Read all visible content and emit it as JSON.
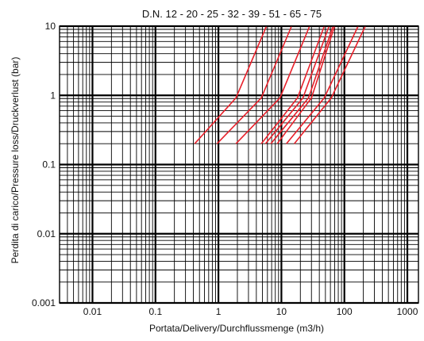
{
  "chart_data": {
    "type": "line",
    "title": "D.N. 12 - 20 - 25 - 32 - 39 - 51 - 65 - 75",
    "xlabel": "Portata/Delivery/Durchflussmenge (m3/h)",
    "ylabel": "Perdita di carico/Pressure loss/Druckverlust (bar)",
    "xscale": "log",
    "yscale": "log",
    "xlim": [
      0.003,
      1500
    ],
    "ylim": [
      0.001,
      10
    ],
    "grid": true,
    "line_color": "#e8202a",
    "x_ticks": [
      {
        "value": 0.01,
        "label": "0.01"
      },
      {
        "value": 0.1,
        "label": "0.1"
      },
      {
        "value": 1,
        "label": "1"
      },
      {
        "value": 10,
        "label": "10"
      },
      {
        "value": 100,
        "label": "100"
      },
      {
        "value": 1000,
        "label": "1000"
      }
    ],
    "y_ticks": [
      {
        "value": 0.001,
        "label": "0.001"
      },
      {
        "value": 0.01,
        "label": "0.01"
      },
      {
        "value": 0.1,
        "label": "0.1"
      },
      {
        "value": 1,
        "label": "1"
      },
      {
        "value": 10,
        "label": "10"
      }
    ],
    "series": [
      {
        "x": [
          0.42,
          1.9,
          5.8
        ],
        "y": [
          0.2,
          0.92,
          10
        ]
      },
      {
        "x": [
          0.95,
          4.8,
          14.5
        ],
        "y": [
          0.2,
          0.92,
          10
        ]
      },
      {
        "x": [
          1.9,
          9.5,
          28
        ],
        "y": [
          0.2,
          0.92,
          10
        ]
      },
      {
        "x": [
          4.8,
          18,
          48
        ],
        "y": [
          0.2,
          0.92,
          10
        ]
      },
      {
        "x": [
          5.6,
          22,
          57
        ],
        "y": [
          0.2,
          0.92,
          10
        ]
      },
      {
        "x": [
          6.8,
          27,
          66
        ],
        "y": [
          0.2,
          0.92,
          10
        ]
      },
      {
        "x": [
          8.6,
          30,
          70
        ],
        "y": [
          0.2,
          0.92,
          10
        ]
      },
      {
        "x": [
          12,
          48,
          165
        ],
        "y": [
          0.2,
          0.92,
          10
        ]
      },
      {
        "x": [
          16,
          62,
          215
        ],
        "y": [
          0.2,
          0.92,
          10
        ]
      }
    ]
  }
}
